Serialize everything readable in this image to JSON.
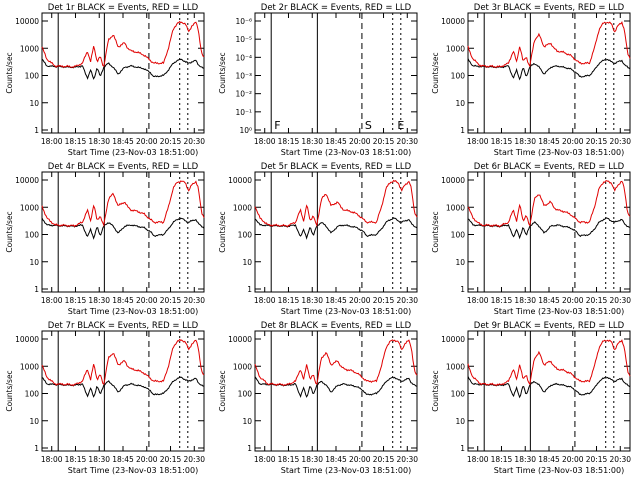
{
  "figure": {
    "background": "#ffffff",
    "axis_color": "#000000",
    "events_color": "#000000",
    "lld_color": "#e00000"
  },
  "chart_data": [
    {
      "type": "line",
      "title": "Det 1r BLACK = Events, RED = LLD",
      "xlabel": "Start Time (23-Nov-03 18:51:00)",
      "ylabel": "Counts/sec",
      "yscale": "log",
      "ylim": [
        1,
        12000
      ],
      "ytick_labels": [
        "1",
        "10",
        "100",
        "1000",
        "10000"
      ],
      "xtick_labels": [
        "18:00",
        "18:15",
        "18:30",
        "18:45",
        "20:00",
        "20:15",
        "20:30"
      ],
      "marker_labels": [],
      "has_data": true
    },
    {
      "type": "line",
      "title": "Det 2r BLACK = Events, RED = LLD",
      "xlabel": "Start Time (23-Nov-03 18:51:00)",
      "ylabel": "Counts/sec",
      "yscale": "log",
      "ylim": [
        1,
        1.1e-06
      ],
      "ytick_labels": [
        "10⁰",
        "10⁻¹",
        "10⁻²",
        "10⁻³",
        "10⁻⁴",
        "10⁻⁵",
        "10⁻⁶"
      ],
      "xtick_labels": [
        "18:00",
        "18:15",
        "18:30",
        "18:45",
        "20:00",
        "20:15",
        "20:30"
      ],
      "marker_labels": [
        "F",
        "S",
        "E"
      ],
      "has_data": false
    },
    {
      "type": "line",
      "title": "Det 3r BLACK = Events, RED = LLD",
      "xlabel": "Start Time (23-Nov-03 18:51:00)",
      "ylabel": "Counts/sec",
      "yscale": "log",
      "ylim": [
        1,
        12000
      ],
      "ytick_labels": [
        "1",
        "10",
        "100",
        "1000",
        "10000"
      ],
      "xtick_labels": [
        "18:00",
        "18:15",
        "18:30",
        "18:45",
        "20:00",
        "20:15",
        "20:30"
      ],
      "marker_labels": [],
      "has_data": true
    },
    {
      "type": "line",
      "title": "Det 4r BLACK = Events, RED = LLD",
      "xlabel": "Start Time (23-Nov-03 18:51:00)",
      "ylabel": "Counts/sec",
      "yscale": "log",
      "ylim": [
        1,
        12000
      ],
      "ytick_labels": [
        "1",
        "10",
        "100",
        "1000",
        "10000"
      ],
      "xtick_labels": [
        "18:00",
        "18:15",
        "18:30",
        "18:45",
        "20:00",
        "20:15",
        "20:30"
      ],
      "marker_labels": [],
      "has_data": true
    },
    {
      "type": "line",
      "title": "Det 5r BLACK = Events, RED = LLD",
      "xlabel": "Start Time (23-Nov-03 18:51:00)",
      "ylabel": "Counts/sec",
      "yscale": "log",
      "ylim": [
        1,
        12000
      ],
      "ytick_labels": [
        "1",
        "10",
        "100",
        "1000",
        "10000"
      ],
      "xtick_labels": [
        "18:00",
        "18:15",
        "18:30",
        "18:45",
        "20:00",
        "20:15",
        "20:30"
      ],
      "marker_labels": [],
      "has_data": true
    },
    {
      "type": "line",
      "title": "Det 6r BLACK = Events, RED = LLD",
      "xlabel": "Start Time (23-Nov-03 18:51:00)",
      "ylabel": "Counts/sec",
      "yscale": "log",
      "ylim": [
        1,
        12000
      ],
      "ytick_labels": [
        "1",
        "10",
        "100",
        "1000",
        "10000"
      ],
      "xtick_labels": [
        "18:00",
        "18:15",
        "18:30",
        "18:45",
        "20:00",
        "20:15",
        "20:30"
      ],
      "marker_labels": [],
      "has_data": true
    },
    {
      "type": "line",
      "title": "Det 7r BLACK = Events, RED = LLD",
      "xlabel": "Start Time (23-Nov-03 18:51:00)",
      "ylabel": "Counts/sec",
      "yscale": "log",
      "ylim": [
        1,
        12000
      ],
      "ytick_labels": [
        "1",
        "10",
        "100",
        "1000",
        "10000"
      ],
      "xtick_labels": [
        "18:00",
        "18:15",
        "18:30",
        "18:45",
        "20:00",
        "20:15",
        "20:30"
      ],
      "marker_labels": [],
      "has_data": true
    },
    {
      "type": "line",
      "title": "Det 8r BLACK = Events, RED = LLD",
      "xlabel": "Start Time (23-Nov-03 18:51:00)",
      "ylabel": "Counts/sec",
      "yscale": "log",
      "ylim": [
        1,
        12000
      ],
      "ytick_labels": [
        "1",
        "10",
        "100",
        "1000",
        "10000"
      ],
      "xtick_labels": [
        "18:00",
        "18:15",
        "18:30",
        "18:45",
        "20:00",
        "20:15",
        "20:30"
      ],
      "marker_labels": [],
      "has_data": true
    },
    {
      "type": "line",
      "title": "Det 9r BLACK = Events, RED = LLD",
      "xlabel": "Start Time (23-Nov-03 18:51:00)",
      "ylabel": "Counts/sec",
      "yscale": "log",
      "ylim": [
        1,
        12000
      ],
      "ytick_labels": [
        "1",
        "10",
        "100",
        "1000",
        "10000"
      ],
      "xtick_labels": [
        "18:00",
        "18:15",
        "18:30",
        "18:45",
        "20:00",
        "20:15",
        "20:30"
      ],
      "marker_labels": [],
      "has_data": true
    }
  ]
}
